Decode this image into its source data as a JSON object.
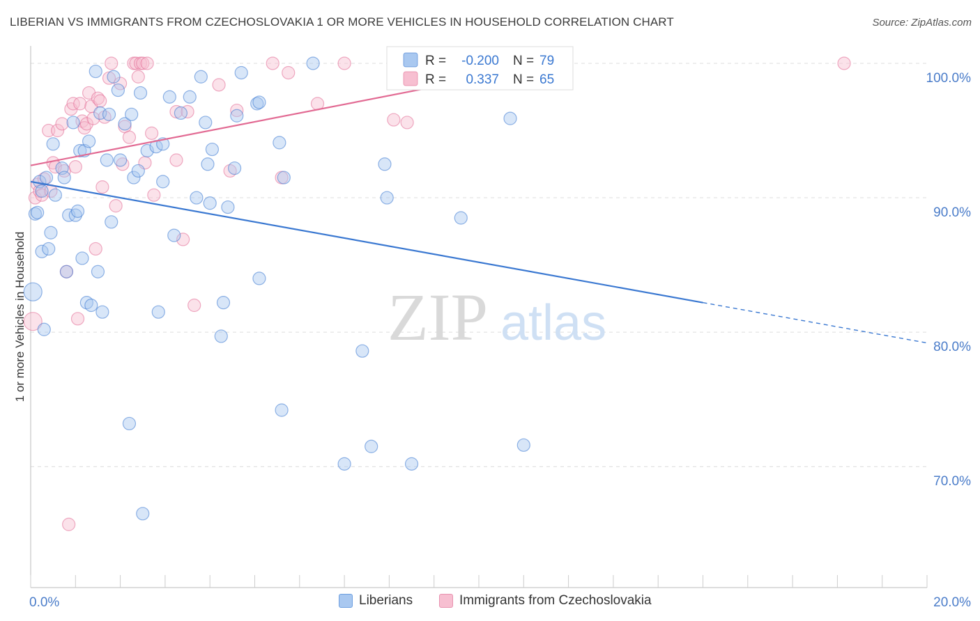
{
  "title": "LIBERIAN VS IMMIGRANTS FROM CZECHOSLOVAKIA 1 OR MORE VEHICLES IN HOUSEHOLD CORRELATION CHART",
  "source": "Source: ZipAtlas.com",
  "watermark": {
    "zip": "ZIP",
    "atlas": "atlas"
  },
  "colors": {
    "blue": "#3a78d1",
    "blue_fill": "#a9c8f0",
    "pink": "#e26a93",
    "pink_fill": "#f7bfd1",
    "grid": "#dcdcdc",
    "axis_text": "#4a7cc9"
  },
  "legend_stats": [
    {
      "series": "Liberians",
      "r_label": "R =",
      "r_value": "-0.200",
      "n_label": "N =",
      "n_value": "79"
    },
    {
      "series": "Immigrants from Czechoslovakia",
      "r_label": "R =",
      "r_value": "0.337",
      "n_label": "N =",
      "n_value": "65"
    }
  ],
  "chart_data": {
    "type": "scatter",
    "title": "LIBERIAN VS IMMIGRANTS FROM CZECHOSLOVAKIA 1 OR MORE VEHICLES IN HOUSEHOLD CORRELATION CHART",
    "xlabel": "",
    "ylabel": "1 or more Vehicles in Household",
    "xlim": [
      0,
      20
    ],
    "ylim": [
      61,
      101.5
    ],
    "x_tick_labels": [
      {
        "value": 0,
        "label": "0.0%"
      },
      {
        "value": 20,
        "label": "20.0%"
      }
    ],
    "y_tick_labels": [
      {
        "value": 100,
        "label": "100.0%"
      },
      {
        "value": 90,
        "label": "90.0%"
      },
      {
        "value": 80,
        "label": "80.0%"
      },
      {
        "value": 70,
        "label": "70.0%"
      }
    ],
    "grid": true,
    "legend_position": "bottom",
    "series": [
      {
        "name": "Liberians",
        "color": "#3a78d1",
        "r": -0.2,
        "n": 79,
        "trend": {
          "x0": 0,
          "y0": 91.2,
          "x1": 15,
          "y1": 82.2,
          "dashed_to_x": 20,
          "dashed_to_y": 79.2
        },
        "points": [
          [
            0.05,
            83.0
          ],
          [
            0.1,
            88.8
          ],
          [
            0.15,
            88.9
          ],
          [
            0.2,
            91.2
          ],
          [
            0.25,
            90.5
          ],
          [
            0.25,
            86.0
          ],
          [
            0.3,
            80.2
          ],
          [
            0.35,
            91.5
          ],
          [
            0.4,
            86.2
          ],
          [
            0.45,
            87.4
          ],
          [
            0.5,
            94.0
          ],
          [
            0.55,
            90.2
          ],
          [
            0.7,
            92.2
          ],
          [
            0.75,
            91.5
          ],
          [
            0.8,
            84.5
          ],
          [
            0.85,
            88.7
          ],
          [
            0.95,
            95.6
          ],
          [
            1.0,
            88.7
          ],
          [
            1.05,
            89.0
          ],
          [
            1.1,
            93.5
          ],
          [
            1.15,
            85.5
          ],
          [
            1.2,
            93.5
          ],
          [
            1.25,
            82.2
          ],
          [
            1.3,
            94.2
          ],
          [
            1.35,
            82.0
          ],
          [
            1.45,
            99.4
          ],
          [
            1.5,
            84.5
          ],
          [
            1.55,
            96.3
          ],
          [
            1.6,
            81.5
          ],
          [
            1.7,
            92.8
          ],
          [
            1.75,
            96.2
          ],
          [
            1.8,
            88.2
          ],
          [
            1.85,
            99.0
          ],
          [
            1.95,
            98.0
          ],
          [
            2.0,
            92.8
          ],
          [
            2.1,
            95.5
          ],
          [
            2.2,
            73.2
          ],
          [
            2.25,
            96.2
          ],
          [
            2.3,
            91.5
          ],
          [
            2.4,
            92.0
          ],
          [
            2.45,
            97.8
          ],
          [
            2.5,
            66.5
          ],
          [
            2.6,
            93.5
          ],
          [
            2.8,
            93.8
          ],
          [
            2.85,
            81.5
          ],
          [
            2.95,
            91.2
          ],
          [
            2.95,
            94.0
          ],
          [
            3.1,
            97.5
          ],
          [
            3.2,
            87.2
          ],
          [
            3.35,
            96.3
          ],
          [
            3.55,
            97.5
          ],
          [
            3.7,
            90.0
          ],
          [
            3.8,
            99.0
          ],
          [
            3.9,
            95.6
          ],
          [
            3.95,
            92.5
          ],
          [
            4.0,
            89.6
          ],
          [
            4.05,
            93.6
          ],
          [
            4.25,
            79.7
          ],
          [
            4.3,
            82.2
          ],
          [
            4.4,
            89.3
          ],
          [
            4.55,
            92.2
          ],
          [
            4.6,
            96.1
          ],
          [
            4.7,
            99.3
          ],
          [
            5.05,
            97.0
          ],
          [
            5.1,
            84.0
          ],
          [
            5.55,
            94.1
          ],
          [
            5.6,
            74.2
          ],
          [
            5.65,
            91.5
          ],
          [
            6.3,
            100.0
          ],
          [
            7.0,
            70.2
          ],
          [
            7.4,
            78.6
          ],
          [
            7.6,
            71.5
          ],
          [
            7.9,
            92.5
          ],
          [
            7.95,
            90.0
          ],
          [
            8.5,
            70.2
          ],
          [
            9.6,
            88.5
          ],
          [
            10.7,
            95.9
          ],
          [
            11.0,
            71.6
          ],
          [
            5.1,
            97.1
          ]
        ]
      },
      {
        "name": "Immigrants from Czechoslovakia",
        "color": "#e26a93",
        "r": 0.337,
        "n": 65,
        "trend": {
          "x0": 0,
          "y0": 92.4,
          "x1": 12,
          "y1": 100.2
        },
        "points": [
          [
            0.05,
            80.8
          ],
          [
            0.1,
            90.0
          ],
          [
            0.15,
            91.0
          ],
          [
            0.2,
            90.5
          ],
          [
            0.25,
            90.2
          ],
          [
            0.3,
            91.4
          ],
          [
            0.4,
            95.0
          ],
          [
            0.45,
            90.5
          ],
          [
            0.5,
            92.6
          ],
          [
            0.55,
            92.3
          ],
          [
            0.6,
            95.0
          ],
          [
            0.7,
            95.5
          ],
          [
            0.75,
            92.0
          ],
          [
            0.8,
            84.5
          ],
          [
            0.85,
            65.7
          ],
          [
            0.9,
            96.6
          ],
          [
            0.95,
            97.0
          ],
          [
            1.0,
            92.3
          ],
          [
            1.05,
            81.0
          ],
          [
            1.1,
            97.0
          ],
          [
            1.15,
            95.7
          ],
          [
            1.2,
            95.2
          ],
          [
            1.25,
            95.5
          ],
          [
            1.3,
            97.8
          ],
          [
            1.35,
            96.8
          ],
          [
            1.4,
            95.9
          ],
          [
            1.45,
            86.2
          ],
          [
            1.5,
            97.4
          ],
          [
            1.55,
            97.2
          ],
          [
            1.6,
            90.8
          ],
          [
            1.65,
            96.0
          ],
          [
            1.75,
            98.9
          ],
          [
            1.8,
            100.0
          ],
          [
            1.9,
            89.4
          ],
          [
            2.0,
            98.5
          ],
          [
            2.05,
            92.5
          ],
          [
            2.1,
            95.3
          ],
          [
            2.2,
            94.5
          ],
          [
            2.3,
            100.0
          ],
          [
            2.35,
            100.0
          ],
          [
            2.4,
            99.0
          ],
          [
            2.45,
            100.0
          ],
          [
            2.5,
            100.0
          ],
          [
            2.55,
            92.6
          ],
          [
            2.6,
            100.0
          ],
          [
            2.7,
            94.8
          ],
          [
            2.75,
            90.2
          ],
          [
            3.25,
            96.4
          ],
          [
            3.25,
            92.8
          ],
          [
            3.4,
            86.9
          ],
          [
            3.5,
            96.4
          ],
          [
            3.65,
            82.0
          ],
          [
            4.2,
            98.4
          ],
          [
            4.45,
            92.0
          ],
          [
            4.6,
            96.5
          ],
          [
            5.4,
            100.0
          ],
          [
            5.6,
            91.5
          ],
          [
            5.75,
            99.3
          ],
          [
            6.4,
            97.0
          ],
          [
            7.0,
            100.0
          ],
          [
            8.1,
            95.8
          ],
          [
            8.4,
            95.6
          ],
          [
            9.7,
            100.0
          ],
          [
            11.2,
            100.0
          ],
          [
            18.15,
            100.0
          ]
        ]
      }
    ]
  }
}
